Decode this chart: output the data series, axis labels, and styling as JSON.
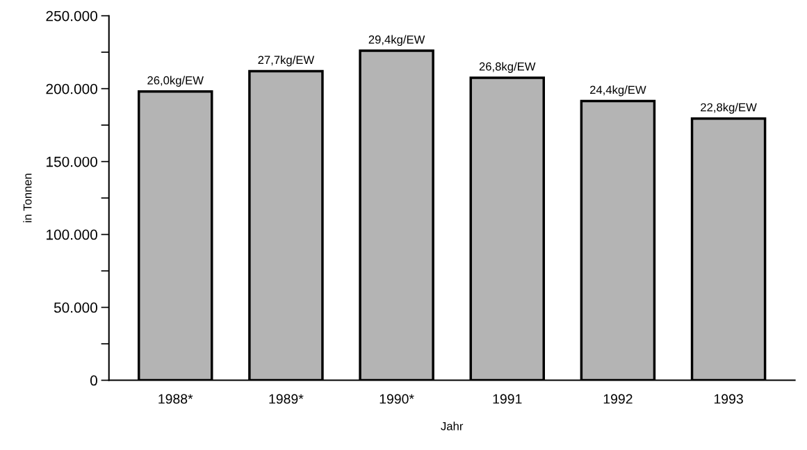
{
  "chart_data": {
    "type": "bar",
    "xlabel": "Jahr",
    "ylabel": "in Tonnen",
    "categories": [
      "1988*",
      "1989*",
      "1990*",
      "1991",
      "1992",
      "1993"
    ],
    "values": [
      198000,
      212000,
      226000,
      207500,
      191500,
      179500
    ],
    "annotations": [
      {
        "text": "26,0kg/EW",
        "x": "1988*",
        "y": 198000
      },
      {
        "text": "27,7kg/EW",
        "x": "1989*",
        "y": 212000
      },
      {
        "text": "29,4kg/EW",
        "x": "1990*",
        "y": 226000
      },
      {
        "text": "26,8kg/EW",
        "x": "1991",
        "y": 207500
      },
      {
        "text": "24,4kg/EW",
        "x": "1992",
        "y": 191500
      },
      {
        "text": "22,8kg/EW",
        "x": "1993",
        "y": 179500
      }
    ],
    "color": "#b4b4b4",
    "ylim": [
      0,
      250000
    ],
    "yticks": [
      {
        "value": 0,
        "label": "0"
      },
      {
        "value": 25000,
        "label": null
      },
      {
        "value": 50000,
        "label": "50.000"
      },
      {
        "value": 75000,
        "label": null
      },
      {
        "value": 100000,
        "label": "100.000"
      },
      {
        "value": 125000,
        "label": null
      },
      {
        "value": 150000,
        "label": "150.000"
      },
      {
        "value": 175000,
        "label": null
      },
      {
        "value": 200000,
        "label": "200.000"
      },
      {
        "value": 225000,
        "label": null
      },
      {
        "value": 250000,
        "label": "250.000"
      }
    ],
    "grid": false,
    "legend": false
  }
}
